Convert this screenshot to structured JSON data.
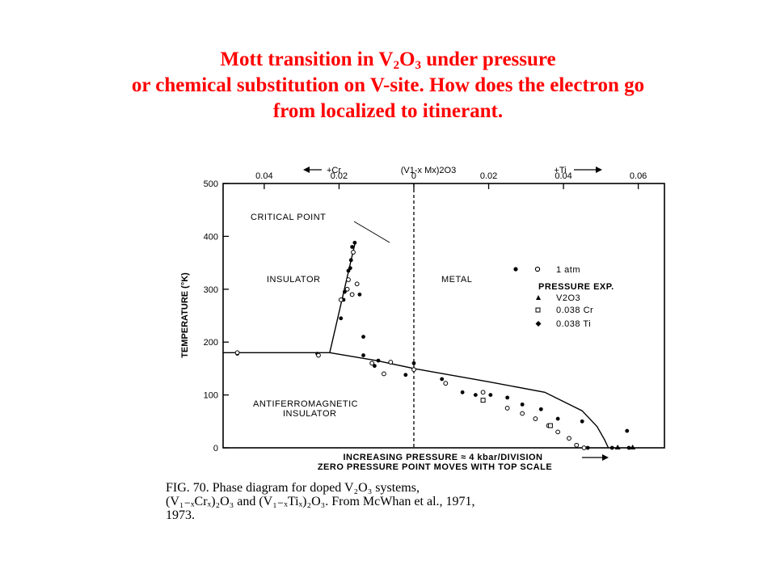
{
  "title": {
    "line1_pre": "Mott transition in V",
    "line1_sub1": "2",
    "line1_mid": "O",
    "line1_sub2": "3",
    "line1_post": " under pressure",
    "line2": "or chemical substitution on V-site. How does the electron go",
    "line3": "from localized to itinerant."
  },
  "chart_data": {
    "type": "scatter",
    "ylabel": "TEMPERATURE (°K)",
    "ylim": [
      0,
      500
    ],
    "y_ticks": [
      "0",
      "100",
      "200",
      "300",
      "400",
      "500"
    ],
    "top_axis_title": "(V1-x Mx)2O3",
    "top_left_arrow_label": "+Cr",
    "top_right_arrow_label": "+Ti",
    "x_top_ticks": [
      {
        "label": "0.04",
        "x": -0.04
      },
      {
        "label": "0.02",
        "x": -0.02
      },
      {
        "label": "0",
        "x": 0
      },
      {
        "label": "0.02",
        "x": 0.02
      },
      {
        "label": "0.04",
        "x": 0.04
      },
      {
        "label": "0.06",
        "x": 0.06
      }
    ],
    "xlim": [
      -0.051,
      0.067
    ],
    "xlabel_line1": "INCREASING PRESSURE ≈ 4 kbar/DIVISION",
    "xlabel_line2": "ZERO PRESSURE POINT MOVES WITH TOP SCALE",
    "regions": {
      "insulator": "INSULATOR",
      "metal": "METAL",
      "afi_line1": "ANTIFERROMAGNETIC",
      "afi_line2": "INSULATOR",
      "critical_point": "CRITICAL POINT"
    },
    "legend": {
      "title1": "1 atm",
      "title2": "PRESSURE EXP.",
      "items": [
        {
          "label": "V2O3",
          "marker": "triangle"
        },
        {
          "label": "0.038 Cr",
          "marker": "square"
        },
        {
          "label": "0.038 Ti",
          "marker": "diamond"
        }
      ]
    },
    "boundary_afi": [
      [
        -0.051,
        180
      ],
      [
        -0.0225,
        180
      ]
    ],
    "boundary_first_order": [
      [
        -0.0225,
        180
      ],
      [
        -0.0158,
        385
      ]
    ],
    "boundary_afm_metal": [
      [
        -0.0225,
        180
      ],
      [
        -0.01,
        165
      ],
      [
        0,
        150
      ],
      [
        0.02,
        125
      ],
      [
        0.035,
        105
      ],
      [
        0.045,
        70
      ],
      [
        0.049,
        40
      ],
      [
        0.051,
        15
      ],
      [
        0.052,
        0
      ]
    ],
    "zero_line_x": 0,
    "series": [
      {
        "marker": "filled",
        "points": [
          [
            -0.0165,
            380
          ],
          [
            -0.0158,
            388
          ],
          [
            -0.017,
            340
          ],
          [
            -0.0175,
            335
          ],
          [
            -0.0185,
            295
          ],
          [
            -0.0195,
            245
          ],
          [
            -0.0188,
            280
          ],
          [
            -0.0168,
            355
          ],
          [
            -0.0145,
            290
          ],
          [
            -0.0135,
            210
          ],
          [
            -0.0135,
            175
          ],
          [
            -0.0095,
            165
          ],
          [
            -0.0105,
            155
          ],
          [
            0,
            160
          ],
          [
            -0.0022,
            138
          ],
          [
            0.0075,
            130
          ],
          [
            0.013,
            105
          ],
          [
            0.0165,
            100
          ],
          [
            0.0205,
            100
          ],
          [
            0.025,
            95
          ],
          [
            0.029,
            82
          ],
          [
            0.034,
            73
          ],
          [
            0.0385,
            55
          ],
          [
            0.045,
            50
          ],
          [
            0.057,
            32
          ],
          [
            0.0575,
            0
          ],
          [
            0.053,
            0
          ],
          [
            0.0465,
            0
          ],
          [
            -0.0472,
            178
          ],
          [
            -0.0258,
            178
          ]
        ]
      },
      {
        "marker": "open",
        "points": [
          [
            -0.0162,
            370
          ],
          [
            -0.0175,
            318
          ],
          [
            -0.0178,
            300
          ],
          [
            -0.0195,
            280
          ],
          [
            -0.0165,
            290
          ],
          [
            -0.0152,
            310
          ],
          [
            -0.0112,
            160
          ],
          [
            -0.008,
            140
          ],
          [
            -0.0062,
            162
          ],
          [
            0,
            148
          ],
          [
            0.0085,
            122
          ],
          [
            0.0185,
            105
          ],
          [
            0.025,
            75
          ],
          [
            0.029,
            65
          ],
          [
            0.0325,
            55
          ],
          [
            0.036,
            42
          ],
          [
            0.0385,
            30
          ],
          [
            0.0415,
            18
          ],
          [
            0.0435,
            5
          ],
          [
            0.0455,
            0
          ],
          [
            -0.0255,
            175
          ],
          [
            -0.0472,
            180
          ]
        ]
      },
      {
        "marker": "square",
        "points": [
          [
            0.0185,
            90
          ],
          [
            0.0365,
            42
          ]
        ]
      },
      {
        "marker": "triangle",
        "points": [
          [
            0.0585,
            0
          ],
          [
            0.0545,
            0
          ]
        ]
      }
    ]
  },
  "caption": {
    "line1": "FIG.  70.  Phase  diagram  for  doped  V₂O₃  systems,",
    "line2": "(V₁₋ₓCrₓ)₂O₃ and (V₁₋ₓTiₓ)₂O₃. From McWhan et al., 1971,",
    "line3": "1973."
  }
}
